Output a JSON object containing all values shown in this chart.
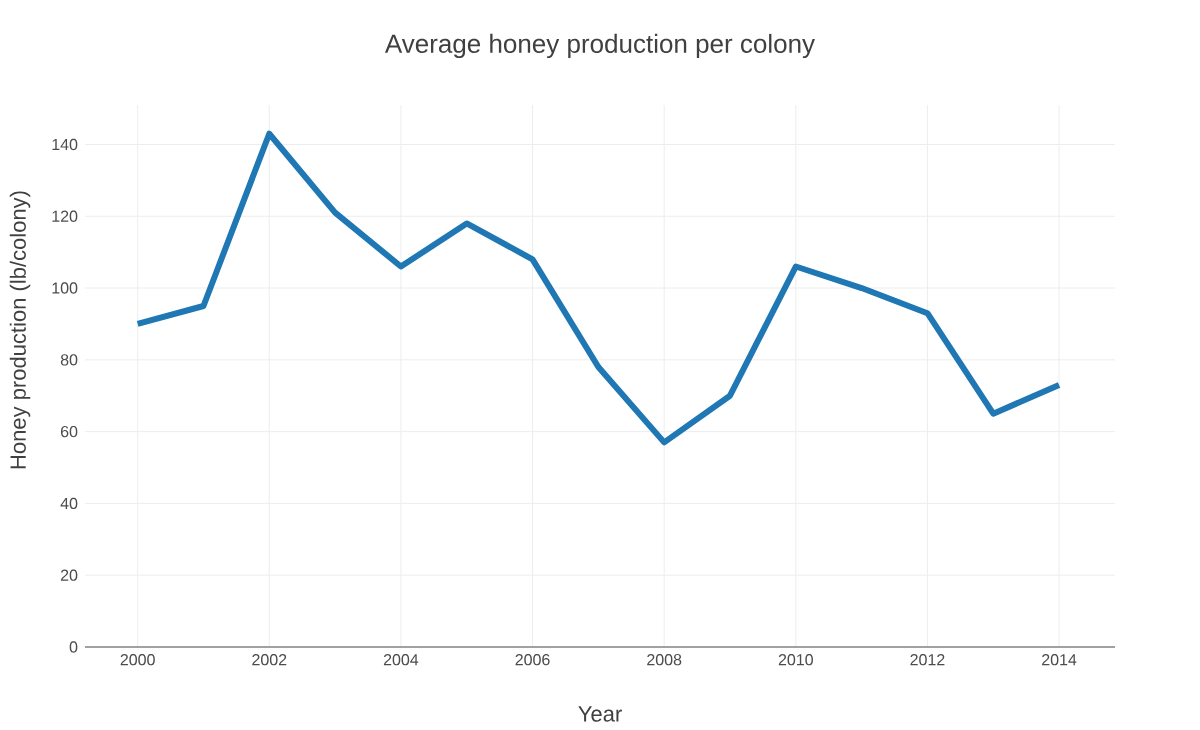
{
  "chart_data": {
    "type": "line",
    "title": "Average honey production per colony",
    "xlabel": "Year",
    "ylabel": "Honey production (lb/colony)",
    "x": [
      2000,
      2001,
      2002,
      2003,
      2004,
      2005,
      2006,
      2007,
      2008,
      2009,
      2010,
      2011,
      2012,
      2013,
      2014
    ],
    "series": [
      {
        "color": "#1f77b4",
        "values": [
          90,
          95,
          143,
          121,
          106,
          118,
          108,
          78,
          57,
          70,
          106,
          100,
          93,
          65,
          73
        ]
      }
    ],
    "xlim": [
      1999.2,
      2014.85
    ],
    "ylim": [
      0,
      151
    ],
    "xticks": [
      2000,
      2002,
      2004,
      2006,
      2008,
      2010,
      2012,
      2014
    ],
    "yticks": [
      0,
      20,
      40,
      60,
      80,
      100,
      120,
      140
    ],
    "grid": true,
    "marker": "none",
    "line_style": "solid"
  }
}
